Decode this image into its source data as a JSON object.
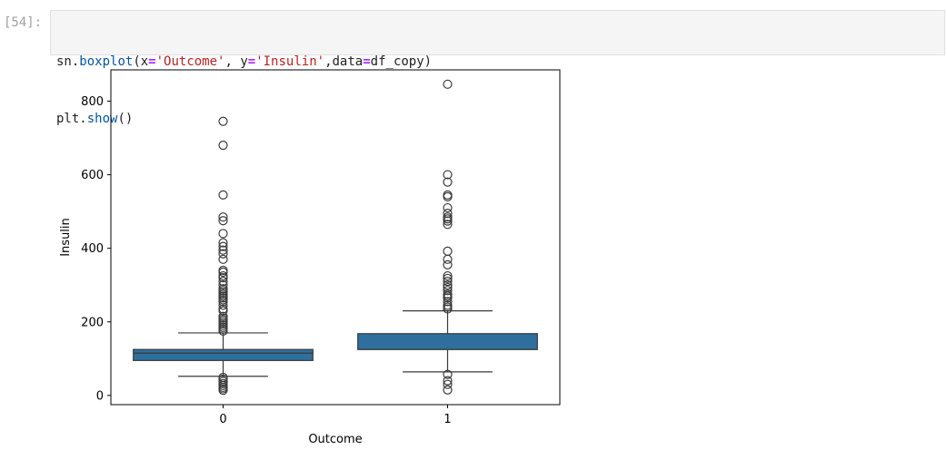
{
  "cell": {
    "prompt": "[54]:",
    "line1": [
      {
        "t": "sn",
        "c": "plain"
      },
      {
        "t": ".",
        "c": "plain"
      },
      {
        "t": "boxplot",
        "c": "fn"
      },
      {
        "t": "(x",
        "c": "plain"
      },
      {
        "t": "=",
        "c": "op"
      },
      {
        "t": "'Outcome'",
        "c": "str"
      },
      {
        "t": ", y",
        "c": "plain"
      },
      {
        "t": "=",
        "c": "op"
      },
      {
        "t": "'Insulin'",
        "c": "str"
      },
      {
        "t": ",data",
        "c": "plain"
      },
      {
        "t": "=",
        "c": "op"
      },
      {
        "t": "df_copy)",
        "c": "plain"
      }
    ],
    "line2": [
      {
        "t": "plt",
        "c": "plain"
      },
      {
        "t": ".",
        "c": "plain"
      },
      {
        "t": "show",
        "c": "fn"
      },
      {
        "t": "()",
        "c": "plain"
      }
    ]
  },
  "colors": {
    "box_fill": "#2e6f9e",
    "line": "#3a3a3a",
    "code_bg": "#f5f5f5"
  },
  "chart_data": {
    "type": "box",
    "xlabel": "Outcome",
    "ylabel": "Insulin",
    "categories": [
      "0",
      "1"
    ],
    "ylim": [
      -25,
      885
    ],
    "yticks": [
      0,
      200,
      400,
      600,
      800
    ],
    "grid": false,
    "boxes": [
      {
        "category": "0",
        "whisker_low": 52,
        "q1": 95,
        "median": 115,
        "q3": 125,
        "whisker_high": 170,
        "outliers": [
          14,
          18,
          22,
          27,
          32,
          38,
          44,
          49,
          175,
          180,
          185,
          190,
          195,
          200,
          205,
          210,
          215,
          230,
          235,
          245,
          255,
          260,
          265,
          270,
          275,
          280,
          285,
          290,
          300,
          310,
          320,
          325,
          335,
          340,
          370,
          385,
          395,
          405,
          415,
          440,
          475,
          485,
          545,
          680,
          745
        ]
      },
      {
        "category": "1",
        "whisker_low": 64,
        "q1": 125,
        "median": 125,
        "q3": 168,
        "whisker_high": 230,
        "outliers": [
          15,
          30,
          40,
          57,
          235,
          240,
          245,
          255,
          265,
          270,
          275,
          285,
          293,
          300,
          310,
          318,
          325,
          355,
          370,
          392,
          465,
          474,
          480,
          485,
          495,
          510,
          540,
          545,
          580,
          600,
          846
        ]
      }
    ]
  }
}
